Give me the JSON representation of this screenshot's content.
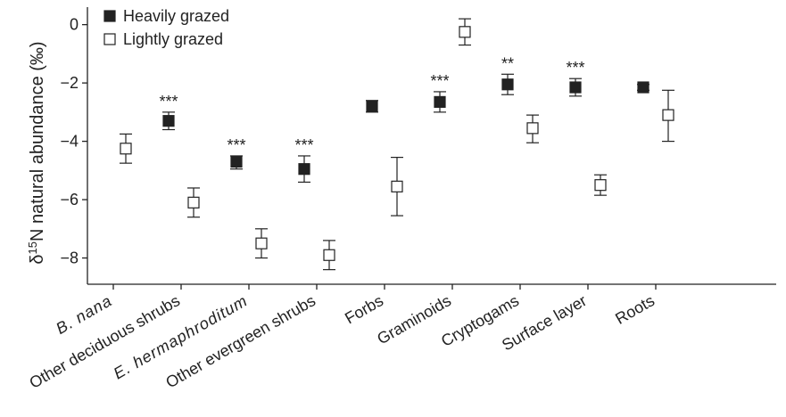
{
  "chart_data": {
    "type": "scatter",
    "ylabel": "δ15N natural abundance (‰)",
    "xlabel": "",
    "ylim": [
      -8.9,
      0.6
    ],
    "yticks": [
      0,
      -2,
      -4,
      -6,
      -8
    ],
    "yticks_label": [
      "0",
      "−2",
      "−4",
      "−6",
      "−8"
    ],
    "grid": false,
    "legend_position": "top-left",
    "categories": [
      {
        "label": "B. nana",
        "italic": true
      },
      {
        "label": "Other deciduous shrubs",
        "italic": false
      },
      {
        "label": "E. hermaphroditum",
        "italic": true
      },
      {
        "label": "Other evergreen shrubs",
        "italic": false
      },
      {
        "label": "Forbs",
        "italic": false
      },
      {
        "label": "Graminoids",
        "italic": false
      },
      {
        "label": "Cryptogams",
        "italic": false
      },
      {
        "label": "Surface layer",
        "italic": false
      },
      {
        "label": "Roots",
        "italic": false
      }
    ],
    "series": [
      {
        "name": "Heavily grazed",
        "marker": "filled-square",
        "color": "#222222",
        "points": [
          null,
          {
            "y": -3.3,
            "err_low": -3.6,
            "err_high": -3.0
          },
          {
            "y": -4.7,
            "err_low": -4.95,
            "err_high": -4.5
          },
          {
            "y": -4.95,
            "err_low": -5.4,
            "err_high": -4.5
          },
          {
            "y": -2.8,
            "err_low": -3.0,
            "err_high": -2.6
          },
          {
            "y": -2.65,
            "err_low": -3.0,
            "err_high": -2.3
          },
          {
            "y": -2.05,
            "err_low": -2.4,
            "err_high": -1.7
          },
          {
            "y": -2.15,
            "err_low": -2.45,
            "err_high": -1.85
          },
          {
            "y": -2.15,
            "err_low": -2.25,
            "err_high": -2.05
          }
        ]
      },
      {
        "name": "Lightly grazed",
        "marker": "open-square",
        "color": "#222222",
        "points": [
          {
            "y": -4.25,
            "err_low": -4.75,
            "err_high": -3.75
          },
          {
            "y": -6.1,
            "err_low": -6.6,
            "err_high": -5.6
          },
          {
            "y": -7.5,
            "err_low": -8.0,
            "err_high": -7.0
          },
          {
            "y": -7.9,
            "err_low": -8.4,
            "err_high": -7.4
          },
          {
            "y": -5.55,
            "err_low": -6.55,
            "err_high": -4.55
          },
          {
            "y": -0.25,
            "err_low": -0.7,
            "err_high": 0.2
          },
          {
            "y": -3.55,
            "err_low": -4.05,
            "err_high": -3.1
          },
          {
            "y": -5.5,
            "err_low": -5.85,
            "err_high": -5.15
          },
          {
            "y": -3.1,
            "err_low": -4.0,
            "err_high": -2.25
          }
        ]
      }
    ],
    "significance": [
      "",
      "***",
      "***",
      "***",
      "",
      "***",
      "**",
      "***",
      ""
    ]
  }
}
